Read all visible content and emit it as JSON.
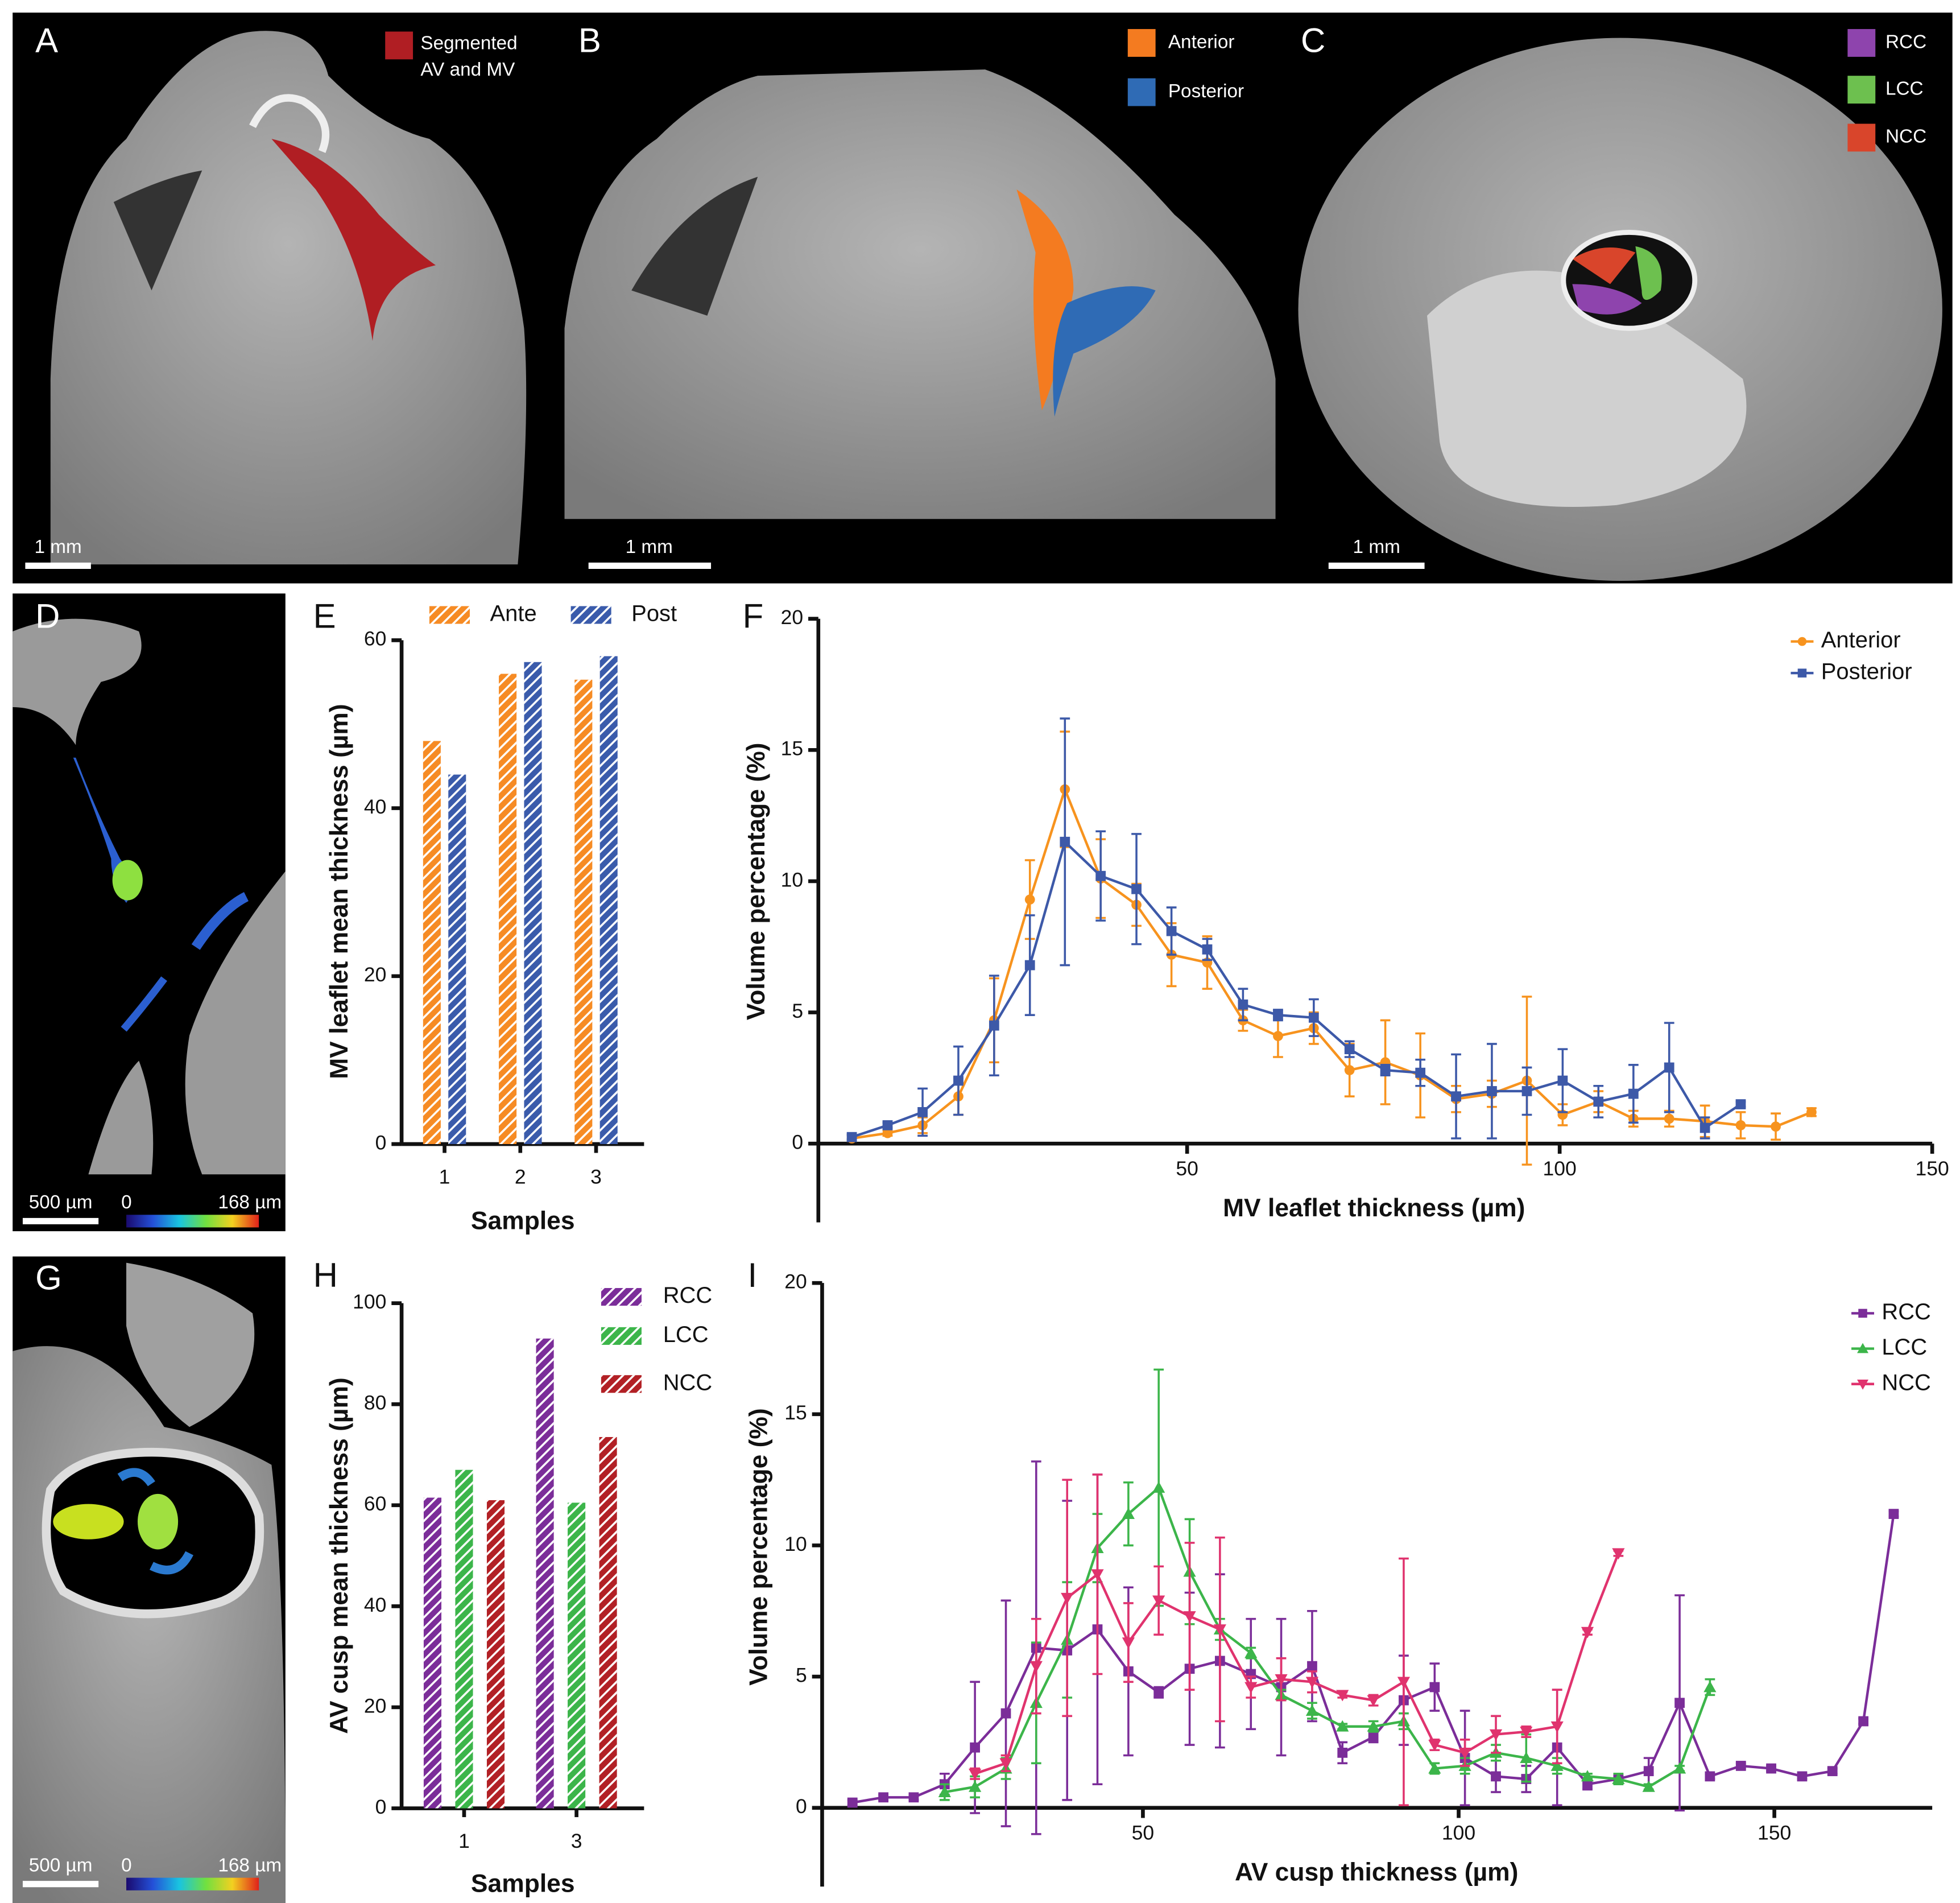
{
  "images": [
    {
      "label": "A",
      "legend": [
        {
          "text": [
            "Segmented",
            "AV and MV"
          ],
          "color": "#b01e23"
        }
      ],
      "scale_bar": "1 mm"
    },
    {
      "label": "B",
      "legend": [
        {
          "text": "Anterior",
          "color": "#f47b20"
        },
        {
          "text": "Posterior",
          "color": "#2f6bb5"
        }
      ],
      "scale_bar": "1 mm"
    },
    {
      "label": "C",
      "legend": [
        {
          "text": "RCC",
          "color": "#8e44ad"
        },
        {
          "text": "LCC",
          "color": "#6dc04f"
        },
        {
          "text": "NCC",
          "color": "#d9452b"
        }
      ],
      "scale_bar": "1 mm"
    },
    {
      "label": "D",
      "scale_bar": "500 µm",
      "colorbar": [
        "0",
        "168 µm"
      ]
    },
    {
      "label": "G",
      "scale_bar": "500 µm",
      "colorbar": [
        "0",
        "168 µm"
      ]
    }
  ],
  "chart_data": [
    {
      "type": "bar",
      "label": "E",
      "y_label": "MV leaflet mean thickness (µm)",
      "x_label": "Samples",
      "categories": [
        "1",
        "2",
        "3"
      ],
      "series": [
        {
          "name": "Ante",
          "color": "#f68b24",
          "values": [
            48,
            56,
            55.3
          ]
        },
        {
          "name": "Post",
          "color": "#3a5bab",
          "values": [
            44,
            57.4,
            58.1
          ]
        }
      ],
      "ylim": [
        0,
        60
      ],
      "yticks": [
        0,
        20,
        40,
        60
      ],
      "legend": "top",
      "hatch": true
    },
    {
      "type": "line",
      "label": "F",
      "y_label": "Volume percentage (%)",
      "x_label": "MV leaflet thickness (µm)",
      "x": [
        5.0,
        9.8,
        14.5,
        19.3,
        24.1,
        28.9,
        33.6,
        38.4,
        43.2,
        47.9,
        52.7,
        57.5,
        62.2,
        67.0,
        71.8,
        76.6,
        81.3,
        86.1,
        90.9,
        95.6,
        100.4,
        105.2,
        109.9,
        114.7,
        119.5,
        124.3,
        129.0,
        133.8
      ],
      "series": [
        {
          "name": "Anterior",
          "color": "#f7931e",
          "marker": "circle",
          "values": [
            0.2,
            0.4,
            0.7,
            1.8,
            4.7,
            9.3,
            13.5,
            10.1,
            9.1,
            7.2,
            6.9,
            4.7,
            4.1,
            4.4,
            2.8,
            3.1,
            2.6,
            1.7,
            1.9,
            2.4,
            1.1,
            1.6,
            0.95,
            0.95,
            0.85,
            0.7,
            0.65,
            1.2
          ],
          "errors": [
            0.1,
            0.1,
            0.3,
            0.7,
            1.6,
            1.5,
            2.2,
            1.5,
            0.8,
            1.2,
            1.0,
            0.4,
            0.8,
            0.6,
            1.0,
            1.6,
            1.6,
            0.5,
            0.5,
            3.2,
            0.4,
            0.4,
            0.3,
            0.3,
            0.6,
            0.5,
            0.5,
            0.15
          ]
        },
        {
          "name": "Posterior",
          "color": "#3d59a8",
          "marker": "square",
          "values": [
            0.25,
            0.7,
            1.2,
            2.4,
            4.5,
            6.8,
            11.5,
            10.2,
            9.7,
            8.1,
            7.4,
            5.3,
            4.9,
            4.8,
            3.6,
            2.8,
            2.7,
            1.8,
            2.0,
            2.0,
            2.4,
            1.6,
            1.9,
            2.9,
            0.6,
            1.5,
            null,
            null
          ],
          "errors": [
            0.1,
            0.1,
            0.9,
            1.3,
            1.9,
            1.9,
            4.7,
            1.7,
            2.1,
            0.9,
            0.4,
            0.6,
            0.2,
            0.7,
            0.3,
            0.2,
            0.5,
            1.6,
            1.8,
            0.9,
            1.2,
            0.6,
            1.1,
            1.7,
            0.4,
            0.1,
            null,
            null
          ]
        }
      ],
      "xlim": [
        0,
        150
      ],
      "xticks": [
        50,
        100,
        150
      ],
      "ylim": [
        -3,
        20
      ],
      "yticks": [
        0,
        5,
        10,
        15,
        20
      ],
      "legend": "upper right"
    },
    {
      "type": "bar",
      "label": "H",
      "y_label": "AV cusp mean thickness (µm)",
      "x_label": "Samples",
      "categories": [
        "1",
        "3"
      ],
      "series": [
        {
          "name": "RCC",
          "color": "#7b2d99",
          "values": [
            61.5,
            93
          ]
        },
        {
          "name": "LCC",
          "color": "#3cb54a",
          "values": [
            67,
            60.5
          ]
        },
        {
          "name": "NCC",
          "color": "#b22025",
          "values": [
            61,
            73.5
          ]
        }
      ],
      "ylim": [
        0,
        100
      ],
      "yticks": [
        0,
        20,
        40,
        60,
        80,
        100
      ],
      "legend": "right",
      "hatch": true
    },
    {
      "type": "line",
      "label": "I",
      "y_label": "Volume percentage (%)",
      "x_label": "AV cusp thickness (µm)",
      "x": [
        4.0,
        8.9,
        13.7,
        18.6,
        23.4,
        28.3,
        33.1,
        38.0,
        42.8,
        47.7,
        52.5,
        57.4,
        62.2,
        67.1,
        71.9,
        76.8,
        81.6,
        86.5,
        91.3,
        96.2,
        101.0,
        105.9,
        110.7,
        115.6,
        120.4,
        125.3,
        130.1,
        135.0,
        139.8,
        144.7,
        149.5,
        154.4,
        159.2,
        164.1,
        168.9
      ],
      "series": [
        {
          "name": "RCC",
          "color": "#7b2d99",
          "marker": "square",
          "values": [
            0.2,
            0.4,
            0.4,
            0.9,
            2.3,
            3.6,
            6.1,
            6.0,
            6.8,
            5.2,
            4.4,
            5.3,
            5.6,
            5.1,
            4.6,
            5.4,
            2.1,
            2.7,
            4.1,
            4.6,
            1.9,
            1.2,
            1.1,
            2.3,
            0.9,
            1.1,
            1.4,
            4.0,
            1.2,
            1.6,
            1.5,
            1.2,
            1.4,
            3.3,
            11.2
          ],
          "errors": [
            0.1,
            0.1,
            0.1,
            0.4,
            2.5,
            4.3,
            7.1,
            5.7,
            5.9,
            3.2,
            0.2,
            2.9,
            3.3,
            2.1,
            2.6,
            2.1,
            0.4,
            0.2,
            1.7,
            0.9,
            1.8,
            0.6,
            0.5,
            2.2,
            0.2,
            0.1,
            0.5,
            4.1,
            0.1,
            0.1,
            0.1,
            0.1,
            0.1,
            0.1,
            0.1
          ]
        },
        {
          "name": "LCC",
          "color": "#3cb54a",
          "marker": "triangle",
          "values": [
            null,
            null,
            null,
            0.6,
            0.8,
            1.5,
            4.0,
            6.4,
            9.9,
            11.2,
            12.2,
            9.0,
            6.8,
            5.9,
            4.3,
            3.7,
            3.1,
            3.1,
            3.3,
            1.5,
            1.6,
            2.1,
            1.9,
            1.6,
            1.2,
            1.1,
            0.8,
            1.5,
            4.6,
            null,
            null,
            null,
            null,
            null,
            null
          ],
          "errors": [
            null,
            null,
            null,
            0.3,
            0.4,
            0.4,
            2.3,
            2.2,
            1.3,
            1.2,
            4.5,
            2.0,
            0.4,
            0.2,
            0.2,
            0.3,
            0.1,
            0.2,
            0.3,
            0.2,
            0.3,
            0.3,
            0.9,
            0.3,
            0.1,
            0.2,
            0.1,
            0.1,
            0.3,
            null,
            null,
            null,
            null,
            null,
            null
          ]
        },
        {
          "name": "NCC",
          "color": "#e0336e",
          "marker": "triangle-down",
          "values": [
            null,
            null,
            null,
            null,
            1.3,
            1.7,
            5.4,
            8.0,
            8.9,
            6.3,
            7.9,
            7.3,
            6.8,
            4.6,
            4.9,
            4.8,
            4.3,
            4.1,
            4.8,
            2.4,
            2.1,
            2.8,
            2.9,
            3.1,
            6.7,
            9.7,
            null,
            null,
            null,
            null,
            null,
            null,
            null,
            null,
            null
          ],
          "errors": [
            null,
            null,
            null,
            null,
            0.2,
            0.3,
            1.8,
            4.5,
            3.8,
            1.5,
            1.3,
            2.8,
            3.5,
            0.4,
            0.8,
            0.4,
            0.1,
            0.2,
            4.7,
            0.2,
            0.5,
            0.7,
            0.2,
            1.4,
            0.1,
            0.1,
            null,
            null,
            null,
            null,
            null,
            null,
            null,
            null,
            null
          ]
        }
      ],
      "xlim": [
        0,
        175
      ],
      "xticks": [
        50,
        100,
        150
      ],
      "ylim": [
        -3,
        20
      ],
      "yticks": [
        0,
        5,
        10,
        15,
        20
      ],
      "legend": "upper right"
    }
  ]
}
